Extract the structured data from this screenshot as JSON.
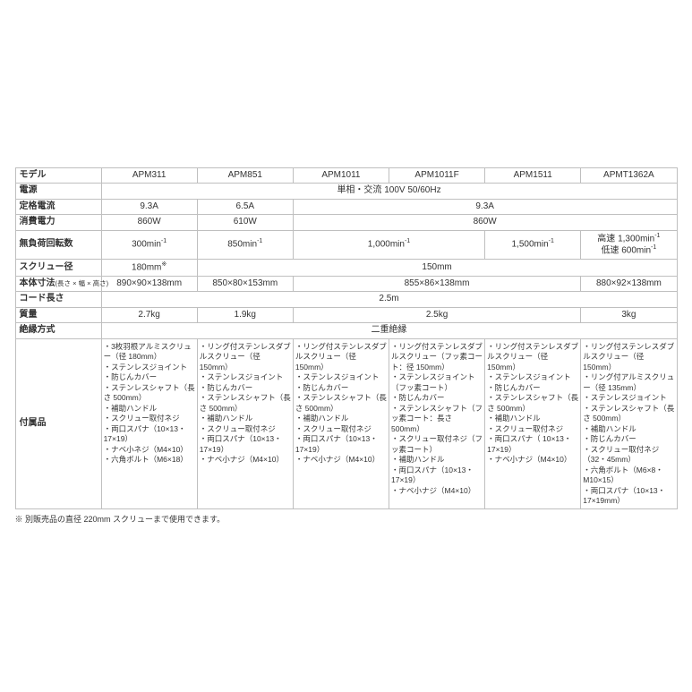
{
  "labels": {
    "model": "モデル",
    "power_source": "電源",
    "rated_current": "定格電流",
    "power_consumption": "消費電力",
    "no_load_speed": "無負荷回転数",
    "screw_diameter": "スクリュー径",
    "body_dimensions": "本体寸法",
    "body_dimensions_sub": "(長さ × 幅 × 高さ)",
    "cord_length": "コード長さ",
    "weight": "質量",
    "insulation": "絶縁方式",
    "accessories": "付属品"
  },
  "models": [
    "APM311",
    "APM851",
    "APM1011",
    "APM1011F",
    "APM1511",
    "APMT1362A"
  ],
  "power_source": "単相・交流 100V 50/60Hz",
  "rated_current": {
    "c1": "9.3A",
    "c2": "6.5A",
    "c3_6": "9.3A"
  },
  "power_consumption": {
    "c1": "860W",
    "c2": "610W",
    "c3_6": "860W"
  },
  "no_load_speed": {
    "c1": "300min<sup>-1</sup>",
    "c2": "850min<sup>-1</sup>",
    "c3_4": "1,000min<sup>-1</sup>",
    "c5": "1,500min<sup>-1</sup>",
    "c6": "高速 1,300min<sup>-1</sup><br>低速 600min<sup>-1</sup>"
  },
  "screw_diameter": {
    "c1": "180mm<sup>※</sup>",
    "c2_6": "150mm"
  },
  "body_dimensions": {
    "c1": "890×90×138mm",
    "c2": "850×80×153mm",
    "c3_5": "855×86×138mm",
    "c6": "880×92×138mm"
  },
  "cord_length": "2.5m",
  "weight": {
    "c1": "2.7kg",
    "c2": "1.9kg",
    "c3_5": "2.5kg",
    "c6": "3kg"
  },
  "insulation": "二重絶縁",
  "accessories": {
    "c1": [
      "3枚羽根アルミスクリュー（径 180mm）",
      "ステンレスジョイント",
      "防じんカバー",
      "ステンレスシャフト（長さ 500mm）",
      "補助ハンドル",
      "スクリュー取付ネジ",
      "両口スパナ（10×13・17×19）",
      "ナベ小ネジ（M4×10）",
      "六角ボルト（M6×18）"
    ],
    "c2": [
      "リング付ステンレスダブルスクリュー（径 150mm）",
      "ステンレスジョイント",
      "防じんカバー",
      "ステンレスシャフト（長さ 500mm）",
      "補助ハンドル",
      "スクリュー取付ネジ",
      "両口スパナ（10×13・17×19）",
      "ナベ小ナジ（M4×10）"
    ],
    "c3": [
      "リング付ステンレスダブルスクリュー（径 150mm）",
      "ステンレスジョイント",
      "防じんカバー",
      "ステンレスシャフト（長さ 500mm）",
      "補助ハンドル",
      "スクリュー取付ネジ",
      "両口スパナ（10×13・17×19）",
      "ナベ小ナジ（M4×10）"
    ],
    "c4": [
      "リング付ステンレスダブルスクリュー（フッ素コート：径 150mm）",
      "ステンレスジョイント（フッ素コート）",
      "防じんカバー",
      "ステンレスシャフト（フッ素コート：長さ 500mm）",
      "スクリュー取付ネジ（フッ素コート）",
      "補助ハンドル",
      "両口スパナ（10×13・17×19）",
      "ナベ小ナジ（M4×10）"
    ],
    "c5": [
      "リング付ステンレスダブルスクリュー（径 150mm）",
      "ステンレスジョイント",
      "防じんカバー",
      "ステンレスシャフト（長さ 500mm）",
      "補助ハンドル",
      "スクリュー取付ネジ",
      "両口スパナ（ 10×13・17×19）",
      "ナベ小ナジ（M4×10）"
    ],
    "c6": [
      "リング付ステンレスダブルスクリュー（径 150mm）",
      "リング付アルミスクリュー（径 135mm）",
      "ステンレスジョイント",
      "ステンレスシャフト（長さ 500mm）",
      "補助ハンドル",
      "防じんカバー",
      "スクリュー取付ネジ（32・45mm）",
      "六角ボルト（M6×8・M10×15）",
      "両口スパナ（10×13・17×19mm）"
    ]
  },
  "footnote": "※ 別販売品の直径 220mm スクリューまで使用できます。",
  "col_widths": {
    "label": "13%",
    "data": "14.5%"
  },
  "colors": {
    "border": "#bfbfbf",
    "text": "#333333",
    "bg": "#ffffff"
  },
  "font_sizes": {
    "base": 10,
    "accessories": 8.5,
    "sublabel": 7.5,
    "footnote": 9
  }
}
